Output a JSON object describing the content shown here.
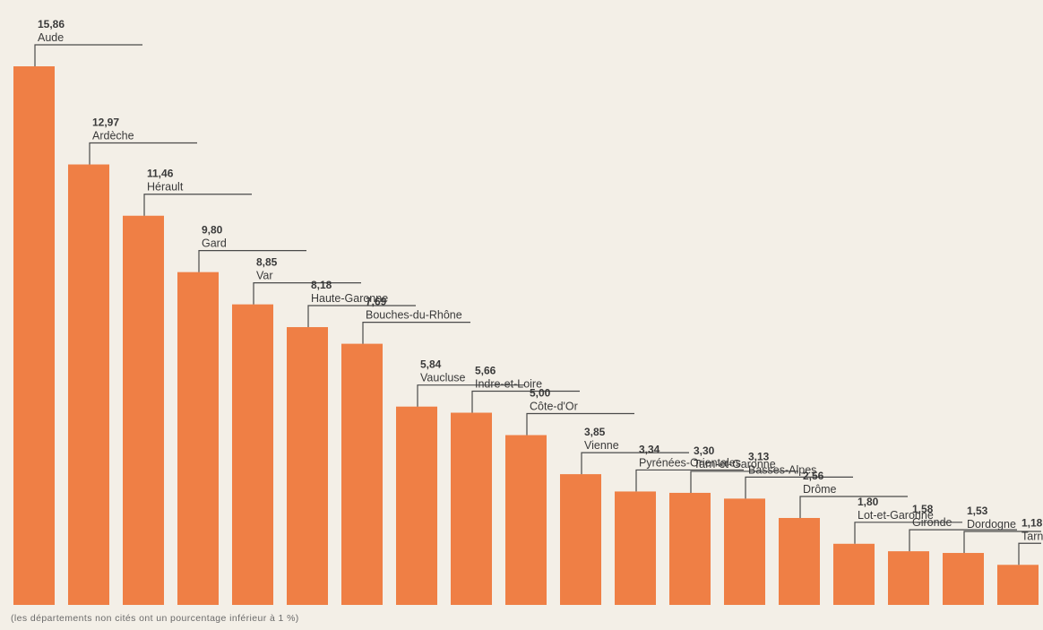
{
  "chart_data": {
    "type": "bar",
    "categories": [
      "Aude",
      "Ardèche",
      "Hérault",
      "Gard",
      "Var",
      "Haute-Garonne",
      "Bouches-du-Rhône",
      "Vaucluse",
      "Indre-et-Loire",
      "Côte-d'Or",
      "Vienne",
      "Pyrénées-Orientales",
      "Tarn-et-Garonne",
      "Basses-Alpes",
      "Drôme",
      "Lot-et-Garonne",
      "Gironde",
      "Dordogne",
      "Tarn"
    ],
    "values": [
      15.86,
      12.97,
      11.46,
      9.8,
      8.85,
      8.18,
      7.69,
      5.84,
      5.66,
      5.0,
      3.85,
      3.34,
      3.3,
      3.13,
      2.56,
      1.8,
      1.58,
      1.53,
      1.18
    ],
    "value_labels": [
      "15,86",
      "12,97",
      "11,46",
      "9,80",
      "8,85",
      "8,18",
      "7,69",
      "5,84",
      "5,66",
      "5,00",
      "3,85",
      "3,34",
      "3,30",
      "3,13",
      "2,56",
      "1,80",
      "1,58",
      "1,53",
      "1,18"
    ],
    "title": "",
    "xlabel": "",
    "ylabel": "",
    "ylim": [
      0,
      16
    ],
    "grid": false,
    "legend": "none",
    "bar_color": "#ef7f45",
    "footnote": "(les départements non cités ont un pourcentage inférieur à 1 %)"
  }
}
